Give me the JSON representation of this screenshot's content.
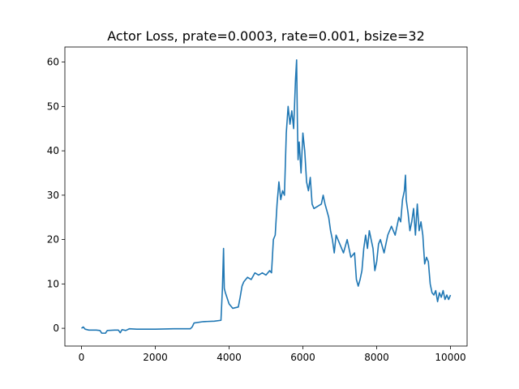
{
  "chart_data": {
    "type": "line",
    "title": "Actor Loss, prate=0.0003, rate=0.001, bsize=32",
    "xlabel": "",
    "ylabel": "",
    "xlim": [
      -450,
      10450
    ],
    "ylim": [
      -4,
      63.4
    ],
    "xticks": [
      0,
      2000,
      4000,
      6000,
      8000,
      10000
    ],
    "yticks": [
      0,
      10,
      20,
      30,
      40,
      50,
      60
    ],
    "grid": false,
    "legend": "none",
    "series": [
      {
        "color": "#1f77b4",
        "points": [
          [
            0,
            0.0
          ],
          [
            50,
            0.3
          ],
          [
            100,
            -0.2
          ],
          [
            200,
            -0.4
          ],
          [
            400,
            -0.4
          ],
          [
            500,
            -0.5
          ],
          [
            550,
            -1.1
          ],
          [
            650,
            -1.1
          ],
          [
            700,
            -0.5
          ],
          [
            900,
            -0.4
          ],
          [
            1000,
            -0.4
          ],
          [
            1050,
            -1.0
          ],
          [
            1100,
            -0.3
          ],
          [
            1200,
            -0.5
          ],
          [
            1300,
            -0.1
          ],
          [
            1500,
            -0.2
          ],
          [
            2000,
            -0.2
          ],
          [
            2500,
            -0.1
          ],
          [
            2950,
            -0.1
          ],
          [
            3000,
            0.3
          ],
          [
            3050,
            1.2
          ],
          [
            3300,
            1.5
          ],
          [
            3600,
            1.6
          ],
          [
            3780,
            1.8
          ],
          [
            3820,
            9.0
          ],
          [
            3850,
            18.0
          ],
          [
            3870,
            9.0
          ],
          [
            3900,
            8.0
          ],
          [
            4000,
            5.5
          ],
          [
            4100,
            4.5
          ],
          [
            4250,
            4.8
          ],
          [
            4300,
            7.0
          ],
          [
            4350,
            9.5
          ],
          [
            4400,
            10.5
          ],
          [
            4500,
            11.5
          ],
          [
            4600,
            11.0
          ],
          [
            4700,
            12.5
          ],
          [
            4800,
            12.0
          ],
          [
            4900,
            12.5
          ],
          [
            5000,
            12.0
          ],
          [
            5100,
            13.0
          ],
          [
            5150,
            12.5
          ],
          [
            5200,
            20.0
          ],
          [
            5250,
            21.0
          ],
          [
            5300,
            28.0
          ],
          [
            5350,
            33.0
          ],
          [
            5400,
            29.0
          ],
          [
            5450,
            31.0
          ],
          [
            5500,
            30.0
          ],
          [
            5550,
            44.0
          ],
          [
            5600,
            50.0
          ],
          [
            5650,
            46.0
          ],
          [
            5700,
            49.0
          ],
          [
            5750,
            45.0
          ],
          [
            5800,
            56.0
          ],
          [
            5830,
            60.5
          ],
          [
            5850,
            47.0
          ],
          [
            5870,
            38.0
          ],
          [
            5900,
            42.0
          ],
          [
            5950,
            35.0
          ],
          [
            6000,
            44.0
          ],
          [
            6050,
            40.0
          ],
          [
            6100,
            33.0
          ],
          [
            6150,
            31.0
          ],
          [
            6200,
            34.0
          ],
          [
            6250,
            28.0
          ],
          [
            6300,
            27.0
          ],
          [
            6400,
            27.5
          ],
          [
            6500,
            28.0
          ],
          [
            6550,
            30.0
          ],
          [
            6600,
            28.0
          ],
          [
            6700,
            25.0
          ],
          [
            6750,
            22.0
          ],
          [
            6800,
            20.0
          ],
          [
            6850,
            17.0
          ],
          [
            6900,
            21.0
          ],
          [
            7000,
            19.0
          ],
          [
            7100,
            17.0
          ],
          [
            7200,
            20.0
          ],
          [
            7300,
            16.0
          ],
          [
            7400,
            17.0
          ],
          [
            7450,
            11.0
          ],
          [
            7500,
            9.5
          ],
          [
            7550,
            11.0
          ],
          [
            7600,
            13.0
          ],
          [
            7650,
            18.0
          ],
          [
            7700,
            21.0
          ],
          [
            7750,
            18.0
          ],
          [
            7800,
            22.0
          ],
          [
            7850,
            20.0
          ],
          [
            7900,
            18.0
          ],
          [
            7950,
            13.0
          ],
          [
            8000,
            15.0
          ],
          [
            8050,
            19.0
          ],
          [
            8100,
            20.0
          ],
          [
            8200,
            17.0
          ],
          [
            8300,
            21.0
          ],
          [
            8400,
            23.0
          ],
          [
            8500,
            21.0
          ],
          [
            8600,
            25.0
          ],
          [
            8650,
            24.0
          ],
          [
            8700,
            29.0
          ],
          [
            8750,
            31.0
          ],
          [
            8780,
            34.5
          ],
          [
            8800,
            29.0
          ],
          [
            8850,
            26.0
          ],
          [
            8900,
            22.0
          ],
          [
            8950,
            24.0
          ],
          [
            9000,
            27.0
          ],
          [
            9050,
            21.0
          ],
          [
            9100,
            28.0
          ],
          [
            9150,
            22.0
          ],
          [
            9200,
            24.0
          ],
          [
            9250,
            21.0
          ],
          [
            9300,
            14.5
          ],
          [
            9350,
            16.0
          ],
          [
            9400,
            15.0
          ],
          [
            9450,
            10.0
          ],
          [
            9500,
            8.0
          ],
          [
            9550,
            7.5
          ],
          [
            9600,
            8.5
          ],
          [
            9650,
            6.0
          ],
          [
            9700,
            8.0
          ],
          [
            9750,
            7.0
          ],
          [
            9800,
            8.5
          ],
          [
            9850,
            6.5
          ],
          [
            9900,
            7.5
          ],
          [
            9950,
            6.5
          ],
          [
            10000,
            7.5
          ]
        ]
      }
    ]
  }
}
